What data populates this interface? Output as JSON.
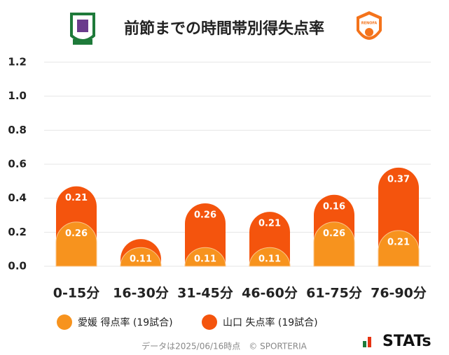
{
  "chart_data": {
    "type": "stacked-bar",
    "title": "前節までの時間帯別得失点率",
    "categories": [
      "0-15分",
      "16-30分",
      "31-45分",
      "46-60分",
      "61-75分",
      "76-90分"
    ],
    "series": [
      {
        "name": "愛媛 得点率 (19試合)",
        "color": "#f7931e",
        "values": [
          0.26,
          0.11,
          0.11,
          0.11,
          0.26,
          0.21
        ],
        "value_labels": [
          "0.26",
          "0.11",
          "0.11",
          "0.11",
          "0.26",
          "0.21"
        ]
      },
      {
        "name": "山口 失点率 (19試合)",
        "color": "#f4540d",
        "values": [
          0.21,
          0.05,
          0.26,
          0.21,
          0.16,
          0.37
        ],
        "value_labels": [
          "0.21",
          null,
          "0.26",
          "0.21",
          "0.16",
          "0.37"
        ]
      }
    ],
    "ylim": [
      0,
      1.2
    ],
    "yticks": [
      {
        "value": 0,
        "label": "0.0"
      },
      0.2,
      0.4,
      0.6,
      0.8,
      {
        "value": 1,
        "label": "1.0"
      },
      1.2
    ],
    "grid": true
  },
  "footer": {
    "note": "データは2025/06/16時点　© SPORTERIA",
    "brand": "STATs"
  }
}
